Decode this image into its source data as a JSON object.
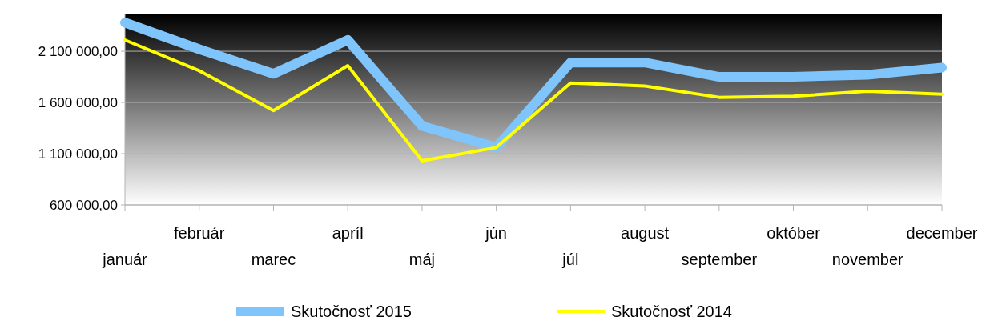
{
  "chart_data": {
    "type": "line",
    "categories": [
      "január",
      "február",
      "marec",
      "apríl",
      "máj",
      "jún",
      "júl",
      "august",
      "september",
      "október",
      "november",
      "december"
    ],
    "series": [
      {
        "name": "Skutočnosť 2015",
        "color": "#7fc4fb",
        "values": [
          2380000,
          2120000,
          1880000,
          2210000,
          1370000,
          1160000,
          1990000,
          1990000,
          1850000,
          1850000,
          1870000,
          1940000
        ]
      },
      {
        "name": "Skutočnosť 2014",
        "color": "#ffff00",
        "values": [
          2210000,
          1910000,
          1520000,
          1960000,
          1030000,
          1160000,
          1790000,
          1760000,
          1650000,
          1660000,
          1710000,
          1680000
        ]
      }
    ],
    "ylim": [
      600000,
      2460000
    ],
    "yticks": [
      {
        "value": 600000,
        "label": "600 000,00"
      },
      {
        "value": 1100000,
        "label": "1 100 000,00"
      },
      {
        "value": 1600000,
        "label": "1 600 000,00"
      },
      {
        "value": 2100000,
        "label": "2 100 000,00"
      }
    ],
    "grid": "y",
    "legend": "bottom",
    "marker": "none",
    "line_style": "solid"
  }
}
